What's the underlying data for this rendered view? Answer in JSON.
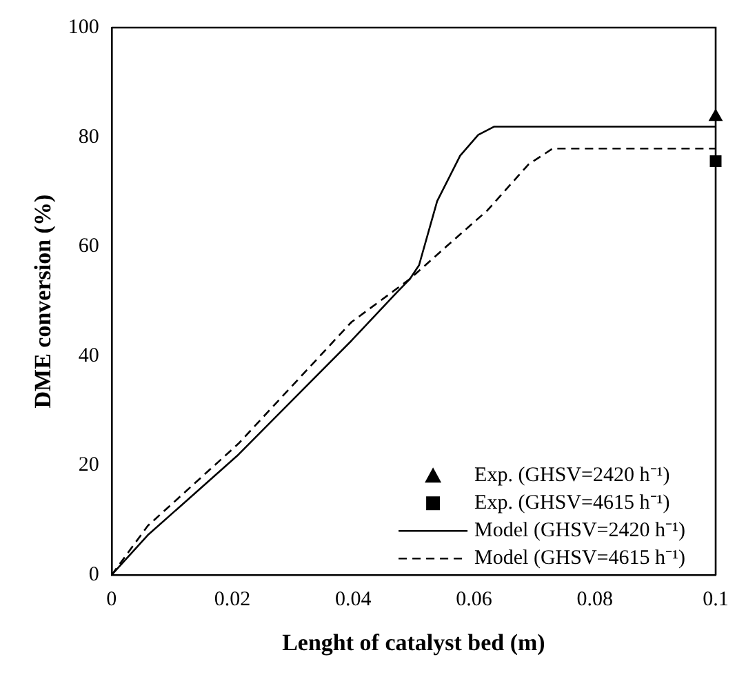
{
  "chart_data": {
    "type": "line",
    "xlabel": "Lenght of catalyst bed (m)",
    "ylabel": "DME conversion (%)",
    "xlim": [
      0,
      0.1
    ],
    "ylim": [
      0,
      100
    ],
    "xticks": [
      0,
      0.02,
      0.04,
      0.06,
      0.08,
      0.1
    ],
    "yticks": [
      0,
      20,
      40,
      60,
      80,
      100
    ],
    "grid": false,
    "legend": "bottom right",
    "series": [
      {
        "name": "Exp. (GHSV=2420 h⁻¹)",
        "type": "scatter",
        "marker": "triangle",
        "color": "#000000",
        "x": [
          0.1
        ],
        "values": [
          83.7
        ]
      },
      {
        "name": "Exp. (GHSV=4615 h⁻¹)",
        "type": "scatter",
        "marker": "square",
        "color": "#000000",
        "x": [
          0.1
        ],
        "values": [
          75.6
        ]
      },
      {
        "name": "Model (GHSV=2420 h⁻¹)",
        "line_style": "solid",
        "color": "#000000",
        "x": [
          0,
          0.006,
          0.021,
          0.0397,
          0.0472,
          0.0494,
          0.0509,
          0.0539,
          0.0577,
          0.0607,
          0.0633,
          0.1
        ],
        "values": [
          0,
          7.3,
          22,
          42.8,
          51.6,
          54.1,
          56.6,
          68.3,
          76.6,
          80.4,
          81.9,
          81.9
        ]
      },
      {
        "name": "Model (GHSV=4615 h⁻¹)",
        "line_style": "dashed",
        "color": "#000000",
        "x": [
          0,
          0.006,
          0.021,
          0.0397,
          0.0494,
          0.0554,
          0.0622,
          0.069,
          0.073,
          0.1
        ],
        "values": [
          0,
          9,
          24,
          46.2,
          54.1,
          60,
          66.6,
          75,
          77.9,
          77.9
        ]
      }
    ]
  }
}
